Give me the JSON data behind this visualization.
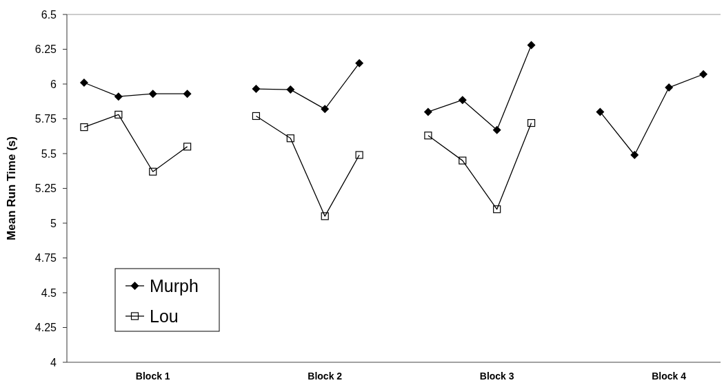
{
  "chart_data": {
    "type": "line",
    "ylabel": "Mean Run Time (s)",
    "categories": [
      null,
      null,
      "Block 1",
      null,
      null,
      null,
      null,
      "Block 2",
      null,
      null,
      null,
      null,
      "Block 3",
      null,
      null,
      null,
      null,
      "Block 4",
      null
    ],
    "series": [
      {
        "name": "Murph",
        "color": "#000000",
        "marker": "diamond",
        "values": [
          6.01,
          5.91,
          5.93,
          5.93,
          null,
          5.965,
          5.96,
          5.82,
          6.15,
          null,
          5.8,
          5.885,
          5.67,
          6.28,
          null,
          5.8,
          5.49,
          5.975,
          6.07
        ]
      },
      {
        "name": "Lou",
        "color": "#000000",
        "marker": "square",
        "values": [
          5.69,
          5.78,
          5.37,
          5.55,
          null,
          5.77,
          5.61,
          5.05,
          5.49,
          null,
          5.63,
          5.45,
          5.1,
          5.72,
          null,
          null,
          null,
          null,
          null
        ]
      }
    ],
    "ylim": [
      4,
      6.5
    ],
    "yticks": [
      4,
      4.25,
      4.5,
      4.75,
      5,
      5.25,
      5.5,
      5.75,
      6,
      6.25,
      6.5
    ],
    "grid": false,
    "legend": "bottom left",
    "line_style": "solid"
  }
}
